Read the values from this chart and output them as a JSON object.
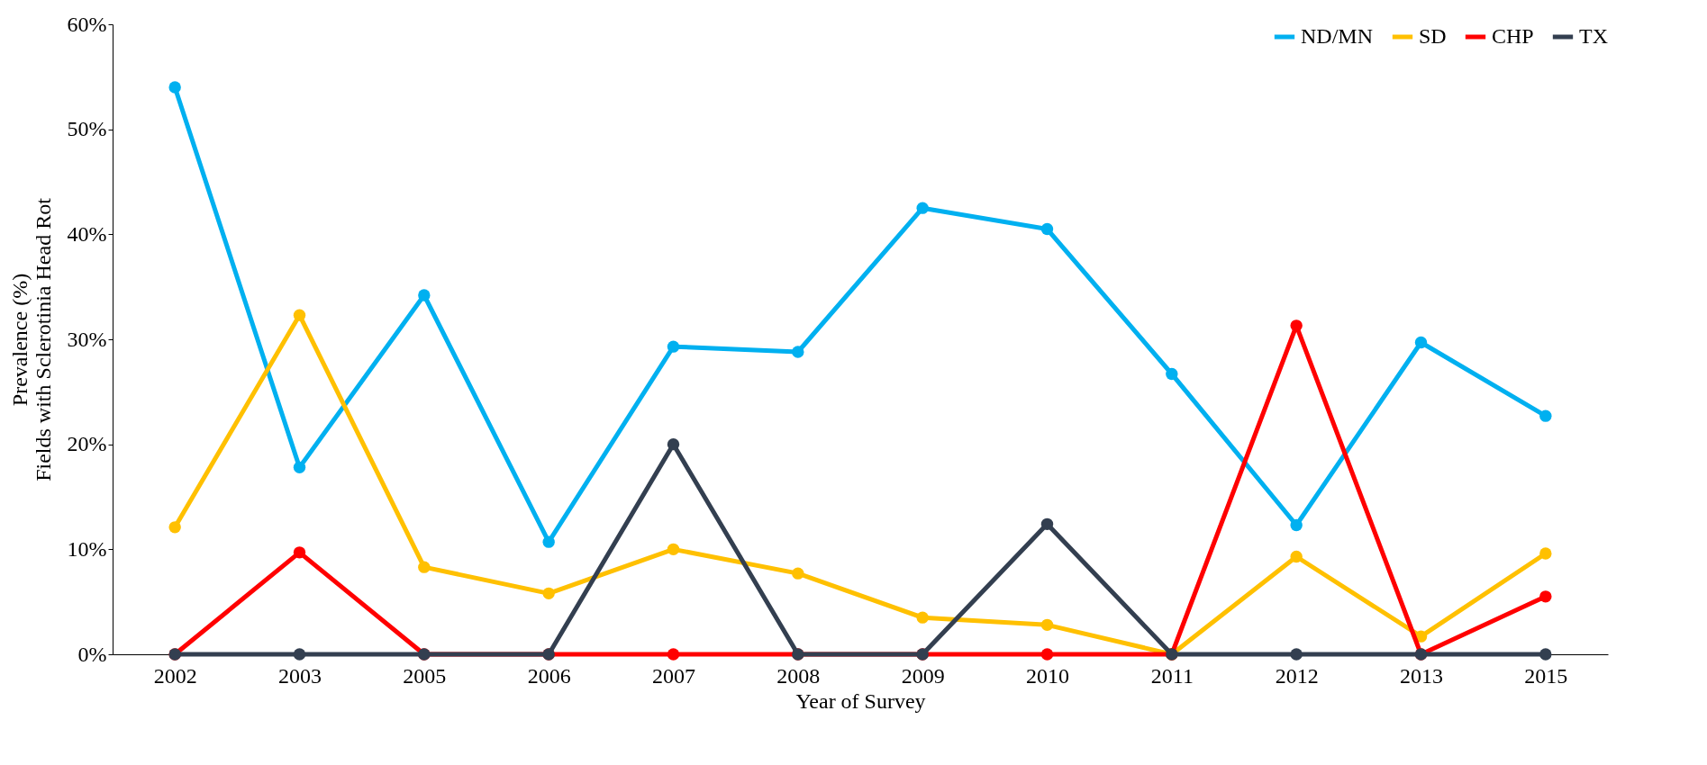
{
  "chart_data": {
    "type": "line",
    "xlabel": "Year of Survey",
    "ylabel": "Prevalence (%)\nFields with Sclerotinia Head Rot",
    "categories": [
      "2002",
      "2003",
      "2005",
      "2006",
      "2007",
      "2008",
      "2009",
      "2010",
      "2011",
      "2012",
      "2013",
      "2015"
    ],
    "ylim": [
      0,
      60
    ],
    "yticks": [
      {
        "value": 0,
        "label": "0%"
      },
      {
        "value": 10,
        "label": "10%"
      },
      {
        "value": 20,
        "label": "20%"
      },
      {
        "value": 30,
        "label": "30%"
      },
      {
        "value": 40,
        "label": "40%"
      },
      {
        "value": 50,
        "label": "50%"
      },
      {
        "value": 60,
        "label": "60%"
      }
    ],
    "grid": false,
    "legend": "top right",
    "marker": "circle",
    "line_style": "solid",
    "series": [
      {
        "name": "ND/MN",
        "color": "#00b0f0",
        "values": [
          54,
          17.8,
          34.2,
          10.7,
          29.3,
          28.8,
          42.5,
          40.5,
          26.7,
          12.3,
          29.7,
          22.7
        ]
      },
      {
        "name": "SD",
        "color": "#ffc000",
        "values": [
          12.1,
          32.3,
          8.3,
          5.8,
          10,
          7.7,
          3.5,
          2.8,
          0,
          9.3,
          1.7,
          9.6
        ]
      },
      {
        "name": "CHP",
        "color": "#ff0000",
        "values": [
          0,
          9.7,
          0,
          0,
          0,
          0,
          0,
          0,
          0,
          31.3,
          0,
          5.5
        ]
      },
      {
        "name": "TX",
        "color": "#333f50",
        "values": [
          0,
          0,
          0,
          0,
          20,
          0,
          0,
          12.4,
          0,
          0,
          0,
          0
        ]
      }
    ]
  }
}
